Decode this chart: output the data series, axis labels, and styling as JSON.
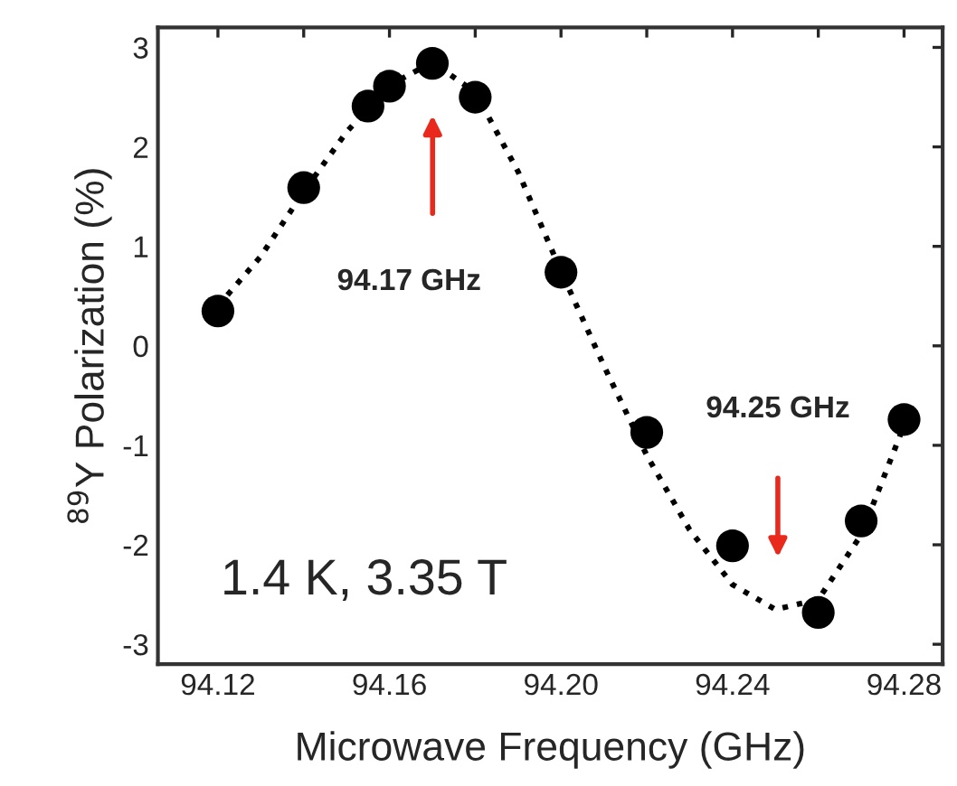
{
  "chart_data": {
    "type": "scatter",
    "xlabel": "Microwave Frequency (GHz)",
    "ylabel": "$^{89}$Y Polarization (%)",
    "xlim": [
      94.106,
      94.289
    ],
    "ylim": [
      -3.2,
      3.2
    ],
    "xticks": [
      {
        "value": 94.12,
        "label": "94.12"
      },
      {
        "value": 94.14,
        "label": null
      },
      {
        "value": 94.16,
        "label": "94.16"
      },
      {
        "value": 94.18,
        "label": null
      },
      {
        "value": 94.2,
        "label": "94.20"
      },
      {
        "value": 94.22,
        "label": null
      },
      {
        "value": 94.24,
        "label": "94.24"
      },
      {
        "value": 94.26,
        "label": null
      },
      {
        "value": 94.28,
        "label": "94.28"
      }
    ],
    "yticks": [
      -3,
      -2,
      -1,
      0,
      1,
      2,
      3
    ],
    "grid": false,
    "series": [
      {
        "color": "#000000",
        "marker": "circle",
        "x": [
          94.12,
          94.14,
          94.155,
          94.16,
          94.17,
          94.18,
          94.2,
          94.22,
          94.24,
          94.26,
          94.27,
          94.28
        ],
        "values": [
          0.35,
          1.59,
          2.41,
          2.61,
          2.84,
          2.5,
          0.74,
          -0.87,
          -2.01,
          -2.68,
          -1.76,
          -0.74
        ]
      },
      {
        "type": "line",
        "color": "#000000",
        "marker": "none",
        "line_style": "dotted",
        "x": [
          94.12,
          94.13,
          94.14,
          94.15,
          94.16,
          94.17,
          94.18,
          94.19,
          94.2,
          94.21,
          94.22,
          94.23,
          94.24,
          94.25,
          94.26,
          94.27,
          94.28
        ],
        "values": [
          0.4,
          0.9,
          1.55,
          2.15,
          2.62,
          2.85,
          2.55,
          1.75,
          0.75,
          -0.2,
          -1.1,
          -1.85,
          -2.4,
          -2.65,
          -2.55,
          -1.9,
          -0.8
        ]
      }
    ],
    "annotations": [
      "94.17 GHz",
      "94.25 GHz",
      "1.4 K, 3.35 T"
    ]
  }
}
